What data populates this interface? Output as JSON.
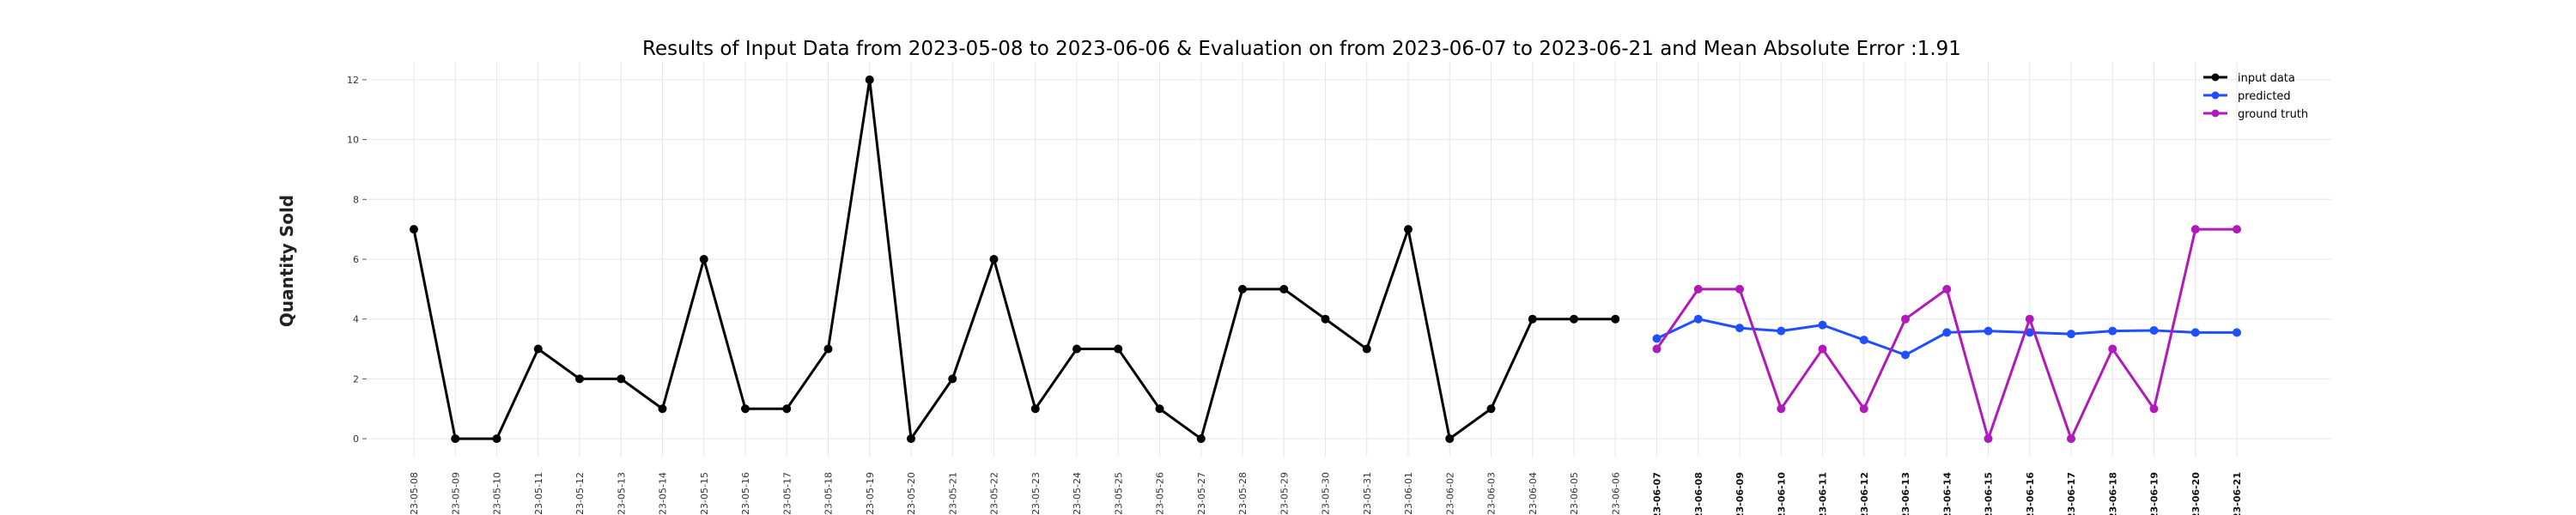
{
  "chart_data": {
    "type": "line",
    "title": "Results of Input Data from 2023-05-08 to 2023-06-06 & Evaluation on from 2023-06-07 to 2023-06-21 and Mean Absolute Error  :1.91",
    "xlabel": "",
    "ylabel": "Quantity Sold",
    "ylim": [
      -0.6,
      12.6
    ],
    "yticks": [
      0,
      2,
      4,
      6,
      8,
      10,
      12
    ],
    "grid": true,
    "legend_position": "top-right",
    "x_tick_labels": [
      "-23-05-08",
      "-23-05-09",
      "-23-05-10",
      "-23-05-11",
      "-23-05-12",
      "-23-05-13",
      "-23-05-14",
      "-23-05-15",
      "-23-05-16",
      "-23-05-17",
      "-23-05-18",
      "-23-05-19",
      "-23-05-20",
      "-23-05-21",
      "-23-05-22",
      "-23-05-23",
      "-23-05-24",
      "-23-05-25",
      "-23-05-26",
      "-23-05-27",
      "-23-05-28",
      "-23-05-29",
      "-23-05-30",
      "-23-05-31",
      "-23-06-01",
      "-23-06-02",
      "-23-06-03",
      "-23-06-04",
      "-23-06-05",
      "-23-06-06",
      "-23-06-07",
      "-23-06-08",
      "-23-06-09",
      "-23-06-10",
      "-23-06-11",
      "-23-06-12",
      "-23-06-13",
      "-23-06-14",
      "-23-06-15",
      "-23-06-16",
      "-23-06-17",
      "-23-06-18",
      "-23-06-19",
      "-23-06-20",
      "-23-06-21"
    ],
    "bold_tick_start": 30,
    "series": [
      {
        "name": "input data",
        "color": "#000000",
        "x": [
          "2023-05-08",
          "2023-05-09",
          "2023-05-10",
          "2023-05-11",
          "2023-05-12",
          "2023-05-13",
          "2023-05-14",
          "2023-05-15",
          "2023-05-16",
          "2023-05-17",
          "2023-05-18",
          "2023-05-19",
          "2023-05-20",
          "2023-05-21",
          "2023-05-22",
          "2023-05-23",
          "2023-05-24",
          "2023-05-25",
          "2023-05-26",
          "2023-05-27",
          "2023-05-28",
          "2023-05-29",
          "2023-05-30",
          "2023-05-31",
          "2023-06-01",
          "2023-06-02",
          "2023-06-03",
          "2023-06-04",
          "2023-06-05",
          "2023-06-06"
        ],
        "values": [
          7,
          0,
          0,
          3,
          2,
          2,
          1,
          6,
          1,
          1,
          3,
          12,
          0,
          2,
          6,
          1,
          3,
          3,
          1,
          0,
          5,
          5,
          4,
          3,
          7,
          0,
          1,
          4,
          4,
          4
        ]
      },
      {
        "name": "predicted",
        "color": "#1f4fff",
        "x": [
          "2023-06-07",
          "2023-06-08",
          "2023-06-09",
          "2023-06-10",
          "2023-06-11",
          "2023-06-12",
          "2023-06-13",
          "2023-06-14",
          "2023-06-15",
          "2023-06-16",
          "2023-06-17",
          "2023-06-18",
          "2023-06-19",
          "2023-06-20",
          "2023-06-21"
        ],
        "values": [
          3.35,
          4.0,
          3.7,
          3.6,
          3.8,
          3.3,
          2.8,
          3.55,
          3.6,
          3.55,
          3.5,
          3.6,
          3.62,
          3.55,
          3.55
        ]
      },
      {
        "name": "ground truth",
        "color": "#b01ab8",
        "x": [
          "2023-06-07",
          "2023-06-08",
          "2023-06-09",
          "2023-06-10",
          "2023-06-11",
          "2023-06-12",
          "2023-06-13",
          "2023-06-14",
          "2023-06-15",
          "2023-06-16",
          "2023-06-17",
          "2023-06-18",
          "2023-06-19",
          "2023-06-20",
          "2023-06-21"
        ],
        "values": [
          3,
          5,
          5,
          1,
          3,
          1,
          4,
          5,
          0,
          4,
          0,
          3,
          1,
          7,
          7
        ]
      }
    ]
  }
}
